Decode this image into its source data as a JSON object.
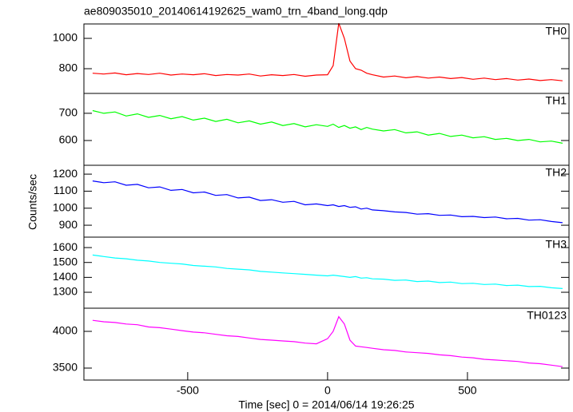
{
  "chart_data": [
    {
      "type": "line",
      "title": "ae809035010_20140614192625_wam0_trn_4band_long.qdp",
      "x": [
        -840,
        -800,
        -760,
        -720,
        -680,
        -640,
        -600,
        -560,
        -520,
        -480,
        -440,
        -400,
        -360,
        -320,
        -280,
        -240,
        -200,
        -160,
        -120,
        -80,
        -40,
        0,
        20,
        40,
        60,
        80,
        100,
        120,
        140,
        160,
        200,
        240,
        280,
        320,
        360,
        400,
        440,
        480,
        520,
        560,
        600,
        640,
        680,
        720,
        760,
        800,
        840
      ],
      "xlim": [
        -871,
        863
      ],
      "ylim": [
        637,
        1095
      ],
      "yticks": [
        800,
        1000
      ],
      "series": [
        {
          "name": "TH0",
          "color": "#ff0000",
          "values": [
            770,
            765,
            772,
            760,
            768,
            762,
            770,
            758,
            765,
            760,
            767,
            755,
            762,
            758,
            765,
            752,
            760,
            755,
            762,
            750,
            758,
            760,
            820,
            1100,
            1000,
            850,
            800,
            790,
            770,
            760,
            745,
            752,
            740,
            748,
            738,
            745,
            735,
            742,
            730,
            738,
            728,
            735,
            725,
            732,
            722,
            728,
            720
          ]
        }
      ]
    },
    {
      "type": "line",
      "x": [
        -840,
        -800,
        -760,
        -720,
        -680,
        -640,
        -600,
        -560,
        -520,
        -480,
        -440,
        -400,
        -360,
        -320,
        -280,
        -240,
        -200,
        -160,
        -120,
        -80,
        -40,
        0,
        20,
        40,
        60,
        80,
        100,
        120,
        140,
        160,
        200,
        240,
        280,
        320,
        360,
        400,
        440,
        480,
        520,
        560,
        600,
        640,
        680,
        720,
        760,
        800,
        840
      ],
      "xlim": [
        -871,
        863
      ],
      "ylim": [
        509,
        773
      ],
      "yticks": [
        600,
        700
      ],
      "series": [
        {
          "name": "TH1",
          "color": "#00ff00",
          "values": [
            710,
            700,
            705,
            690,
            698,
            685,
            692,
            680,
            688,
            675,
            682,
            670,
            678,
            665,
            672,
            660,
            668,
            655,
            662,
            650,
            658,
            652,
            660,
            648,
            655,
            645,
            650,
            640,
            648,
            642,
            635,
            640,
            628,
            632,
            620,
            626,
            615,
            620,
            610,
            614,
            604,
            608,
            600,
            604,
            595,
            598,
            590
          ]
        }
      ]
    },
    {
      "type": "line",
      "y_label": "Counts/sec",
      "x": [
        -840,
        -800,
        -760,
        -720,
        -680,
        -640,
        -600,
        -560,
        -520,
        -480,
        -440,
        -400,
        -360,
        -320,
        -280,
        -240,
        -200,
        -160,
        -120,
        -80,
        -40,
        0,
        20,
        40,
        60,
        80,
        100,
        120,
        140,
        160,
        200,
        240,
        280,
        320,
        360,
        400,
        440,
        480,
        520,
        560,
        600,
        640,
        680,
        720,
        760,
        800,
        840
      ],
      "xlim": [
        -871,
        863
      ],
      "ylim": [
        830,
        1252
      ],
      "yticks": [
        900,
        1000,
        1100,
        1200
      ],
      "series": [
        {
          "name": "TH2",
          "color": "#0000ff",
          "values": [
            1160,
            1150,
            1155,
            1135,
            1140,
            1120,
            1125,
            1105,
            1110,
            1090,
            1095,
            1075,
            1080,
            1060,
            1065,
            1045,
            1050,
            1035,
            1040,
            1020,
            1025,
            1015,
            1020,
            1010,
            1015,
            1005,
            1008,
            995,
            1000,
            990,
            985,
            978,
            975,
            965,
            968,
            958,
            960,
            950,
            952,
            945,
            948,
            938,
            940,
            930,
            932,
            922,
            915
          ]
        }
      ]
    },
    {
      "type": "line",
      "x": [
        -840,
        -800,
        -760,
        -720,
        -680,
        -640,
        -600,
        -560,
        -520,
        -480,
        -440,
        -400,
        -360,
        -320,
        -280,
        -240,
        -200,
        -160,
        -120,
        -80,
        -40,
        0,
        20,
        40,
        60,
        80,
        100,
        120,
        140,
        160,
        200,
        240,
        280,
        320,
        360,
        400,
        440,
        480,
        520,
        560,
        600,
        640,
        680,
        720,
        760,
        800,
        840
      ],
      "xlim": [
        -871,
        863
      ],
      "ylim": [
        1193,
        1670
      ],
      "yticks": [
        1300,
        1400,
        1500,
        1600
      ],
      "series": [
        {
          "name": "TH3",
          "color": "#00ffff",
          "values": [
            1550,
            1540,
            1530,
            1525,
            1515,
            1510,
            1500,
            1495,
            1490,
            1480,
            1475,
            1470,
            1460,
            1455,
            1450,
            1440,
            1435,
            1430,
            1425,
            1420,
            1415,
            1410,
            1415,
            1410,
            1405,
            1400,
            1405,
            1395,
            1398,
            1390,
            1388,
            1380,
            1382,
            1372,
            1375,
            1365,
            1368,
            1358,
            1360,
            1352,
            1355,
            1345,
            1348,
            1338,
            1340,
            1330,
            1325
          ]
        }
      ]
    },
    {
      "type": "line",
      "x_label": "Time [sec] 0 = 2014/06/14 19:26:25",
      "x": [
        -840,
        -800,
        -760,
        -720,
        -680,
        -640,
        -600,
        -560,
        -520,
        -480,
        -440,
        -400,
        -360,
        -320,
        -280,
        -240,
        -200,
        -160,
        -120,
        -80,
        -40,
        0,
        20,
        40,
        60,
        80,
        100,
        120,
        140,
        160,
        200,
        240,
        280,
        320,
        360,
        400,
        440,
        480,
        520,
        560,
        600,
        640,
        680,
        720,
        760,
        800,
        840
      ],
      "xlim": [
        -871,
        863
      ],
      "xticks": [
        -500,
        0,
        500
      ],
      "ylim": [
        3337,
        4315
      ],
      "yticks": [
        3500,
        4000
      ],
      "series": [
        {
          "name": "TH0123",
          "color": "#ff00ff",
          "values": [
            4150,
            4130,
            4120,
            4100,
            4090,
            4060,
            4050,
            4030,
            4010,
            3990,
            3980,
            3960,
            3940,
            3930,
            3910,
            3890,
            3880,
            3870,
            3860,
            3840,
            3830,
            3900,
            4000,
            4200,
            4100,
            3880,
            3800,
            3790,
            3780,
            3770,
            3750,
            3740,
            3720,
            3710,
            3700,
            3680,
            3670,
            3650,
            3640,
            3620,
            3610,
            3600,
            3590,
            3570,
            3560,
            3540,
            3520
          ]
        }
      ]
    }
  ]
}
